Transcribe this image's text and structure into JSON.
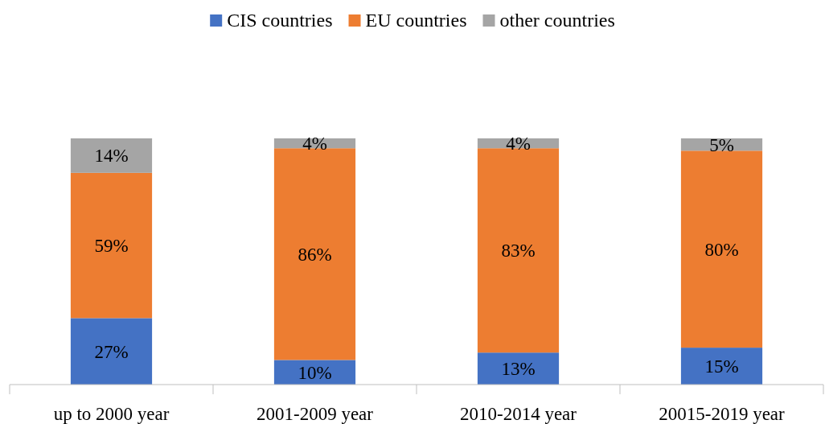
{
  "chart_data": {
    "type": "bar",
    "stacked": true,
    "legend": "top",
    "categories": [
      "up to 2000 year",
      "2001-2009 year",
      "2010-2014 year",
      "20015-2019 year"
    ],
    "series": [
      {
        "name": "CIS countries",
        "color": "#4472c4",
        "values": [
          27,
          10,
          13,
          15
        ],
        "value_labels": [
          "27%",
          "10%",
          "13%",
          "15%"
        ]
      },
      {
        "name": "EU countries",
        "color": "#ed7d31",
        "values": [
          59,
          86,
          83,
          80
        ],
        "value_labels": [
          "59%",
          "86%",
          "83%",
          "80%"
        ]
      },
      {
        "name": "other countries",
        "color": "#a5a5a5",
        "values": [
          14,
          4,
          4,
          5
        ],
        "value_labels": [
          "14%",
          "4%",
          "4%",
          "5%"
        ]
      }
    ]
  }
}
